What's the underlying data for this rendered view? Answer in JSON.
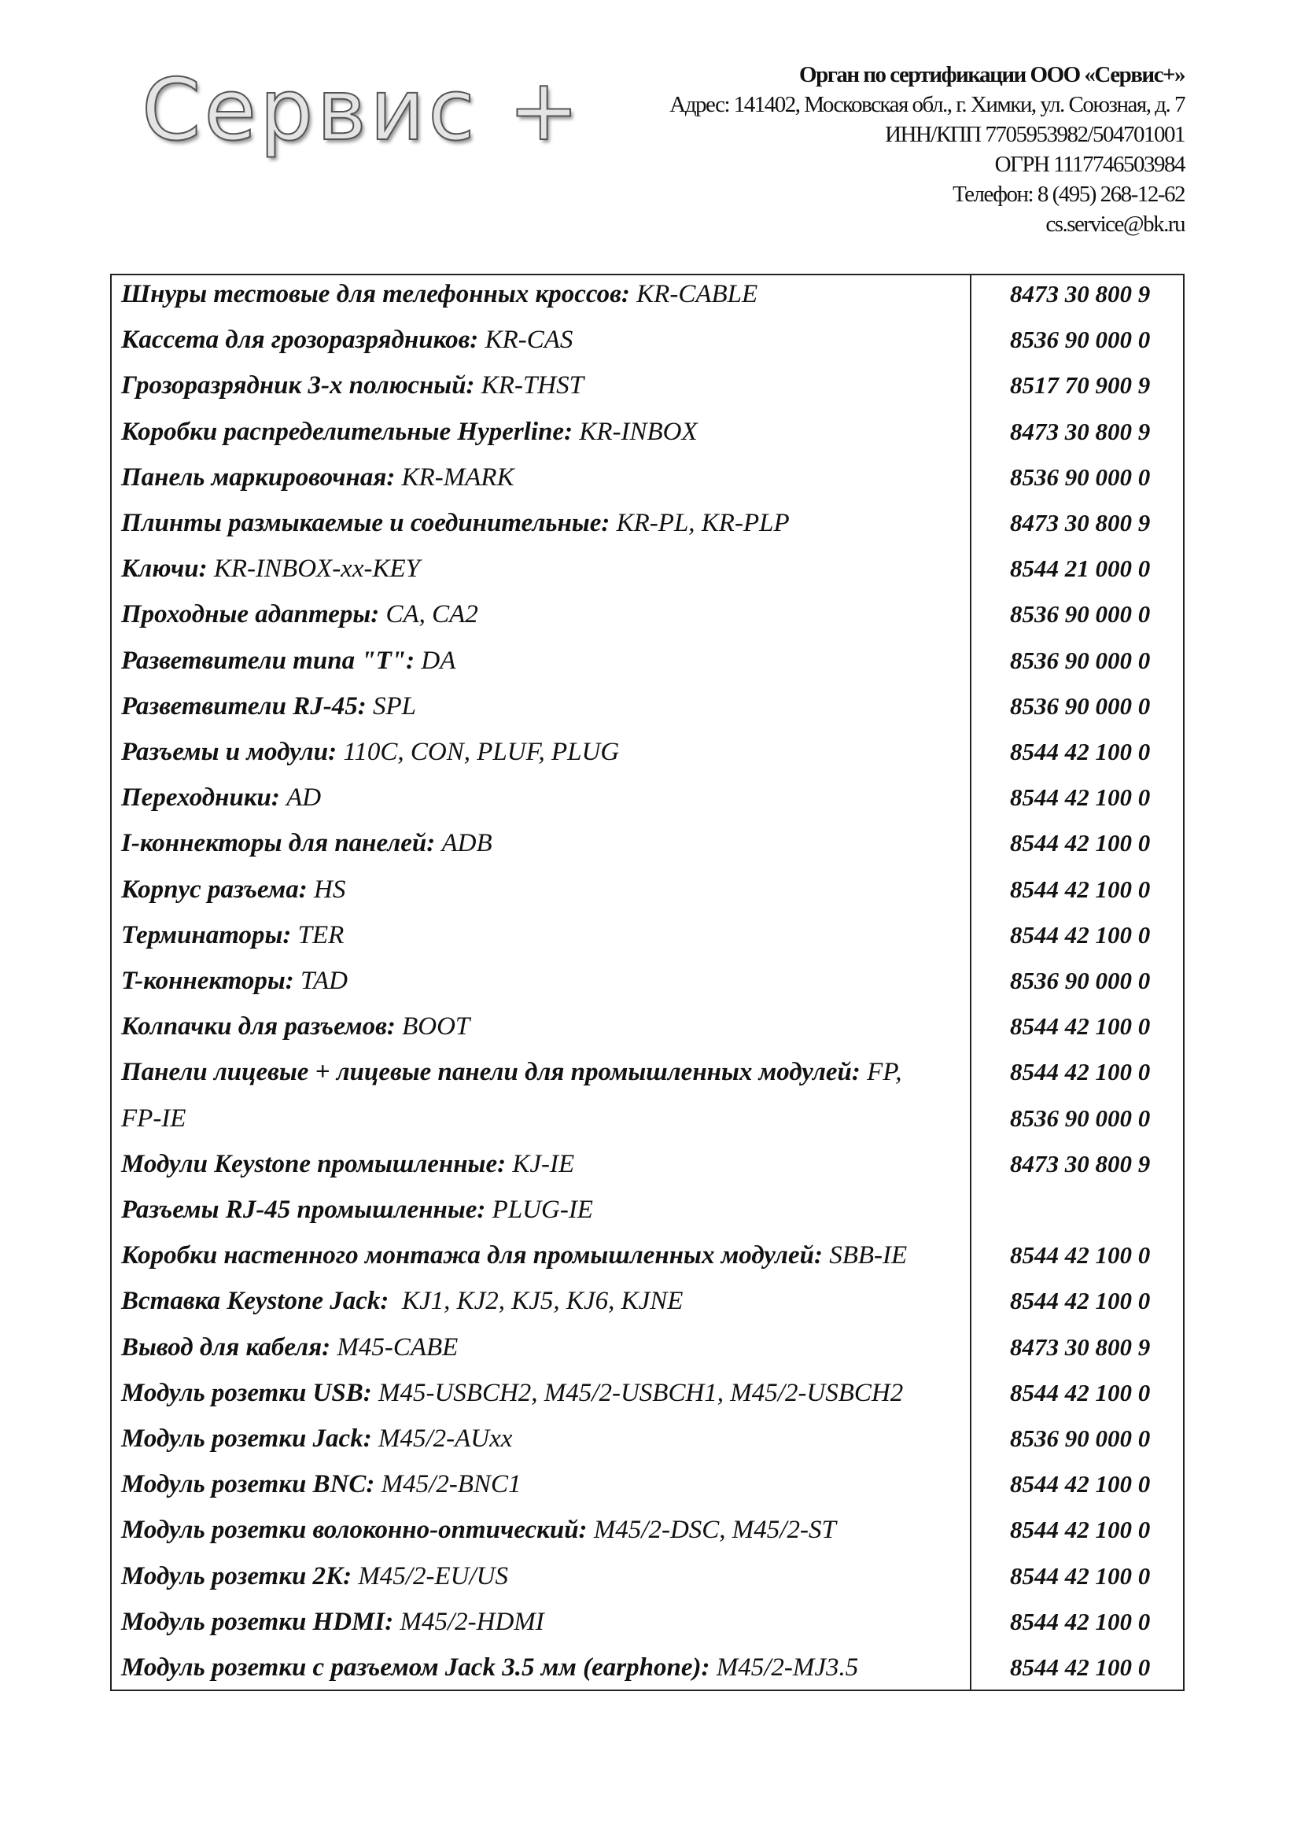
{
  "logo": {
    "text": "Сервис +"
  },
  "header": {
    "org": "Орган по сертификации ООО «Сервис+»",
    "address": "Адрес: 141402, Московская обл., г. Химки, ул. Союзная, д. 7",
    "inn": "ИНН/КПП 7705953982/504701001",
    "ogrn": "ОГРН 1117746503984",
    "phone": "Телефон: 8 (495) 268-12-62",
    "email": "cs.service@bk.ru"
  },
  "rows": [
    {
      "label": "Шнуры тестовые для телефонных кроссов:",
      "code": " KR-CABLE",
      "hs": "8473 30 800 9"
    },
    {
      "label": "Кассета для грозоразрядников:",
      "code": " KR-CAS",
      "hs": "8536 90 000 0"
    },
    {
      "label": "Грозоразрядник 3-х полюсный:",
      "code": " KR-THST",
      "hs": "8517 70 900 9"
    },
    {
      "label": "Коробки распределительные Hyperline:",
      "code": " KR-INBOX",
      "hs": "8473 30 800 9"
    },
    {
      "label": "Панель маркировочная:",
      "code": " KR-MARK",
      "hs": "8536 90 000 0"
    },
    {
      "label": "Плинты размыкаемые и соединительные:",
      "code": " KR-PL, KR-PLP",
      "hs": "8473 30 800 9"
    },
    {
      "label": "Ключи:",
      "code": " KR-INBOX-xx-KEY",
      "hs": "8544 21 000 0"
    },
    {
      "label": "Проходные адаптеры:",
      "code": " CA, CA2",
      "hs": "8536 90 000 0"
    },
    {
      "label": "Разветвители типа \"T\":",
      "code": " DA",
      "hs": "8536 90 000 0"
    },
    {
      "label": "Разветвители RJ-45:",
      "code": " SPL",
      "hs": "8536 90 000 0"
    },
    {
      "label": "Разъемы и модули:",
      "code": " 110C, CON, PLUF, PLUG",
      "hs": "8544 42 100 0"
    },
    {
      "label": "Переходники:",
      "code": " AD",
      "hs": "8544 42 100 0"
    },
    {
      "label": "I-коннекторы для панелей:",
      "code": " ADB",
      "hs": "8544 42 100 0"
    },
    {
      "label": "Корпус разъема:",
      "code": " HS",
      "hs": "8544 42 100 0"
    },
    {
      "label": "Терминаторы:",
      "code": " TER",
      "hs": "8544 42 100 0"
    },
    {
      "label": "T-коннекторы:",
      "code": " TAD",
      "hs": "8536 90 000 0"
    },
    {
      "label": "Колпачки для разъемов:",
      "code": " BOOT",
      "hs": "8544 42 100 0"
    },
    {
      "label": "Панели лицевые + лицевые панели для промышленных модулей:",
      "code": " FP,",
      "hs": "8544 42 100 0"
    },
    {
      "label": "",
      "code": "FP-IE",
      "hs": "8536 90 000 0"
    },
    {
      "label": "Модули Keystone промышленные:",
      "code": " KJ-IE",
      "hs": "8473 30 800 9"
    },
    {
      "label": "Разъемы RJ-45 промышленные:",
      "code": " PLUG-IE",
      "hs": ""
    },
    {
      "label": "Коробки настенного монтажа для промышленных модулей:",
      "code": " SBB-IE",
      "hs": "8544 42 100 0"
    },
    {
      "label": "Вставка Keystone Jack:",
      "code": "  KJ1, KJ2, KJ5, KJ6, KJNE",
      "hs": "8544 42 100 0"
    },
    {
      "label": "Вывод для кабеля:",
      "code": " M45-CABE",
      "hs": "8473 30 800 9"
    },
    {
      "label": "Модуль розетки USB:",
      "code": " M45-USBCH2, M45/2-USBCH1, M45/2-USBCH2",
      "hs": "8544 42 100 0"
    },
    {
      "label": "Модуль розетки Jack:",
      "code": " M45/2-AUxx",
      "hs": "8536 90 000 0"
    },
    {
      "label": "Модуль розетки BNC:",
      "code": " M45/2-BNC1",
      "hs": "8544 42 100 0"
    },
    {
      "label": "Модуль розетки волоконно-оптический:",
      "code": " M45/2-DSC, M45/2-ST",
      "hs": "8544 42 100 0"
    },
    {
      "label": "Модуль розетки 2K:",
      "code": " M45/2-EU/US",
      "hs": "8544 42 100 0"
    },
    {
      "label": "Модуль розетки HDMI:",
      "code": " M45/2-HDMI",
      "hs": "8544 42 100 0"
    },
    {
      "label": "Модуль розетки с разъемом Jack 3.5 мм (earphone):",
      "code": " M45/2-MJ3.5",
      "hs": "8544 42 100 0"
    }
  ]
}
